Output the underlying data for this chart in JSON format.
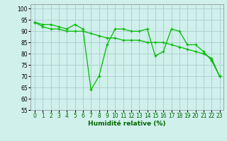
{
  "xlabel": "Humidité relative (%)",
  "background_color": "#cff0eb",
  "grid_color": "#aacccc",
  "line_color": "#00bb00",
  "xlim": [
    -0.5,
    23.5
  ],
  "ylim": [
    55,
    102
  ],
  "yticks": [
    55,
    60,
    65,
    70,
    75,
    80,
    85,
    90,
    95,
    100
  ],
  "xticks": [
    0,
    1,
    2,
    3,
    4,
    5,
    6,
    7,
    8,
    9,
    10,
    11,
    12,
    13,
    14,
    15,
    16,
    17,
    18,
    19,
    20,
    21,
    22,
    23
  ],
  "series1_x": [
    0,
    1,
    2,
    3,
    4,
    5,
    6,
    7,
    8,
    9,
    10,
    11,
    12,
    13,
    14,
    15,
    16,
    17,
    18,
    19,
    20,
    21,
    22,
    23
  ],
  "series1_y": [
    94,
    93,
    93,
    92,
    91,
    93,
    91,
    64,
    70,
    84,
    91,
    91,
    90,
    90,
    91,
    79,
    81,
    91,
    90,
    84,
    84,
    81,
    77,
    70
  ],
  "series2_x": [
    0,
    1,
    2,
    3,
    4,
    5,
    6,
    7,
    8,
    9,
    10,
    11,
    12,
    13,
    14,
    15,
    16,
    17,
    18,
    19,
    20,
    21,
    22,
    23
  ],
  "series2_y": [
    94,
    92,
    91,
    91,
    90,
    90,
    90,
    89,
    88,
    87,
    87,
    86,
    86,
    86,
    85,
    85,
    85,
    84,
    83,
    82,
    81,
    80,
    78,
    70
  ],
  "tick_fontsize": 5.5,
  "xlabel_fontsize": 6.5
}
